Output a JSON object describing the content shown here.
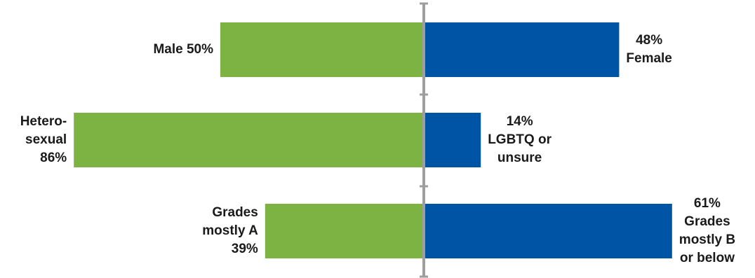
{
  "colors": {
    "left": "#7cb342",
    "right": "#0054a6",
    "axis": "#9e9e9e"
  },
  "chart_data": {
    "type": "bar",
    "orientation": "horizontal-diverging",
    "rows": [
      {
        "left": {
          "value": 50,
          "label_lines": [
            "Male 50%"
          ]
        },
        "right": {
          "value": 48,
          "label_lines": [
            "48%",
            "Female"
          ]
        }
      },
      {
        "left": {
          "value": 86,
          "label_lines": [
            "Hetero-",
            "sexual",
            "86%"
          ]
        },
        "right": {
          "value": 14,
          "label_lines": [
            "14%",
            "LGBTQ or",
            "unsure"
          ]
        }
      },
      {
        "left": {
          "value": 39,
          "label_lines": [
            "Grades",
            "mostly A",
            "39%"
          ]
        },
        "right": {
          "value": 61,
          "label_lines": [
            "61%",
            "Grades",
            "mostly B",
            "or below"
          ]
        }
      }
    ],
    "xlim": [
      0,
      86
    ],
    "grid": false,
    "legend": "none"
  }
}
